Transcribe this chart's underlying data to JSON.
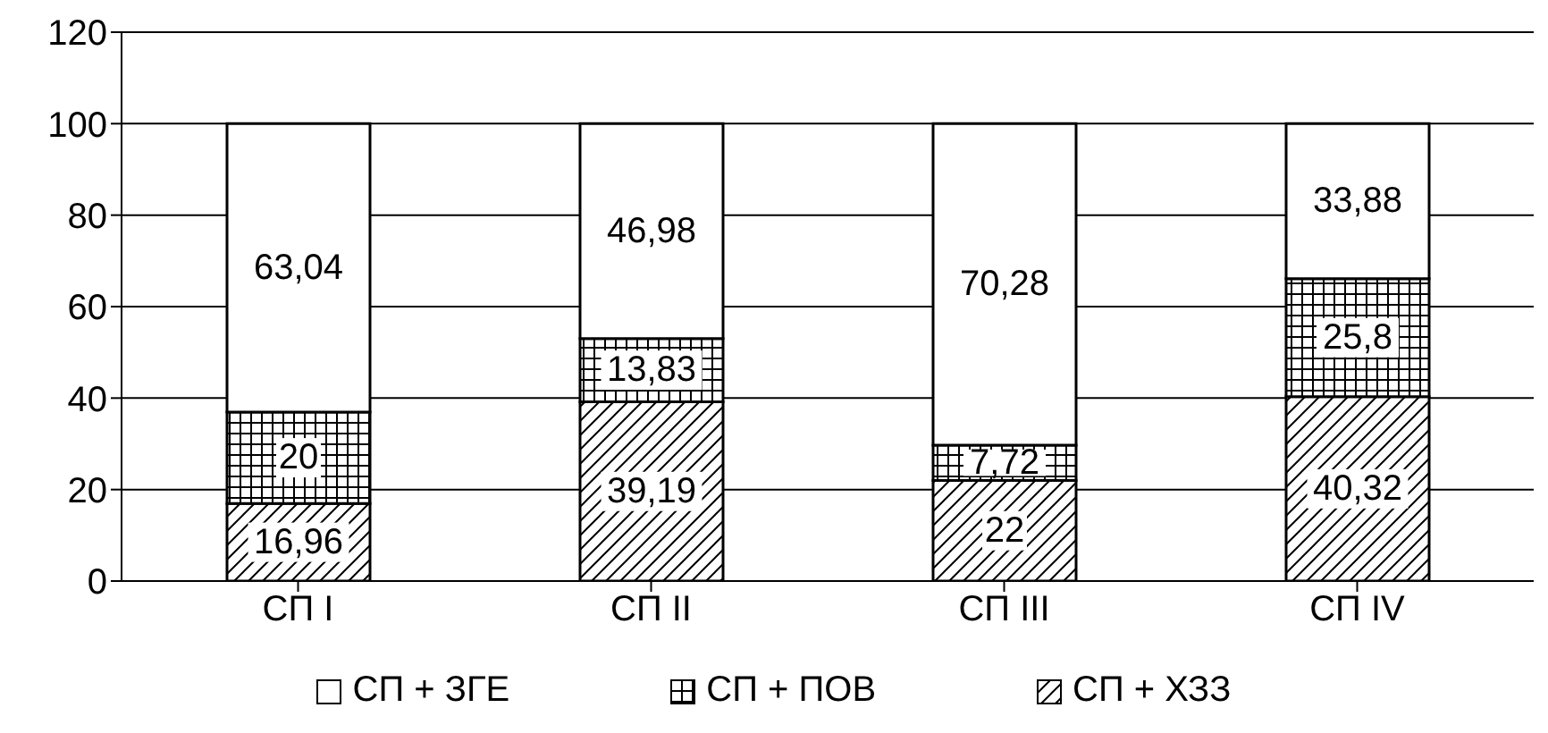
{
  "chart_data": {
    "type": "bar",
    "stacked": true,
    "categories": [
      "СП I",
      "СП II",
      "СП III",
      "СП IV"
    ],
    "series": [
      {
        "name": "СП + ХЗЗ",
        "color": "#000000",
        "values": [
          16.96,
          39.19,
          22,
          40.32
        ],
        "value_labels": [
          "16,96",
          "39,19",
          "22",
          "40,32"
        ]
      },
      {
        "name": "СП + ПОВ",
        "color": "#000000",
        "values": [
          20,
          13.83,
          7.72,
          25.8
        ],
        "value_labels": [
          "20",
          "13,83",
          "7,72",
          "25,8"
        ]
      },
      {
        "name": "СП + ЗГЕ",
        "color": "#ffffff",
        "values": [
          63.04,
          46.98,
          70.28,
          33.88
        ],
        "value_labels": [
          "63,04",
          "46,98",
          "70,28",
          "33,88"
        ]
      }
    ],
    "ylim": [
      0,
      120
    ],
    "yticks": [
      0,
      20,
      40,
      60,
      80,
      100,
      120
    ],
    "grid": "y",
    "legend": "bottom"
  }
}
